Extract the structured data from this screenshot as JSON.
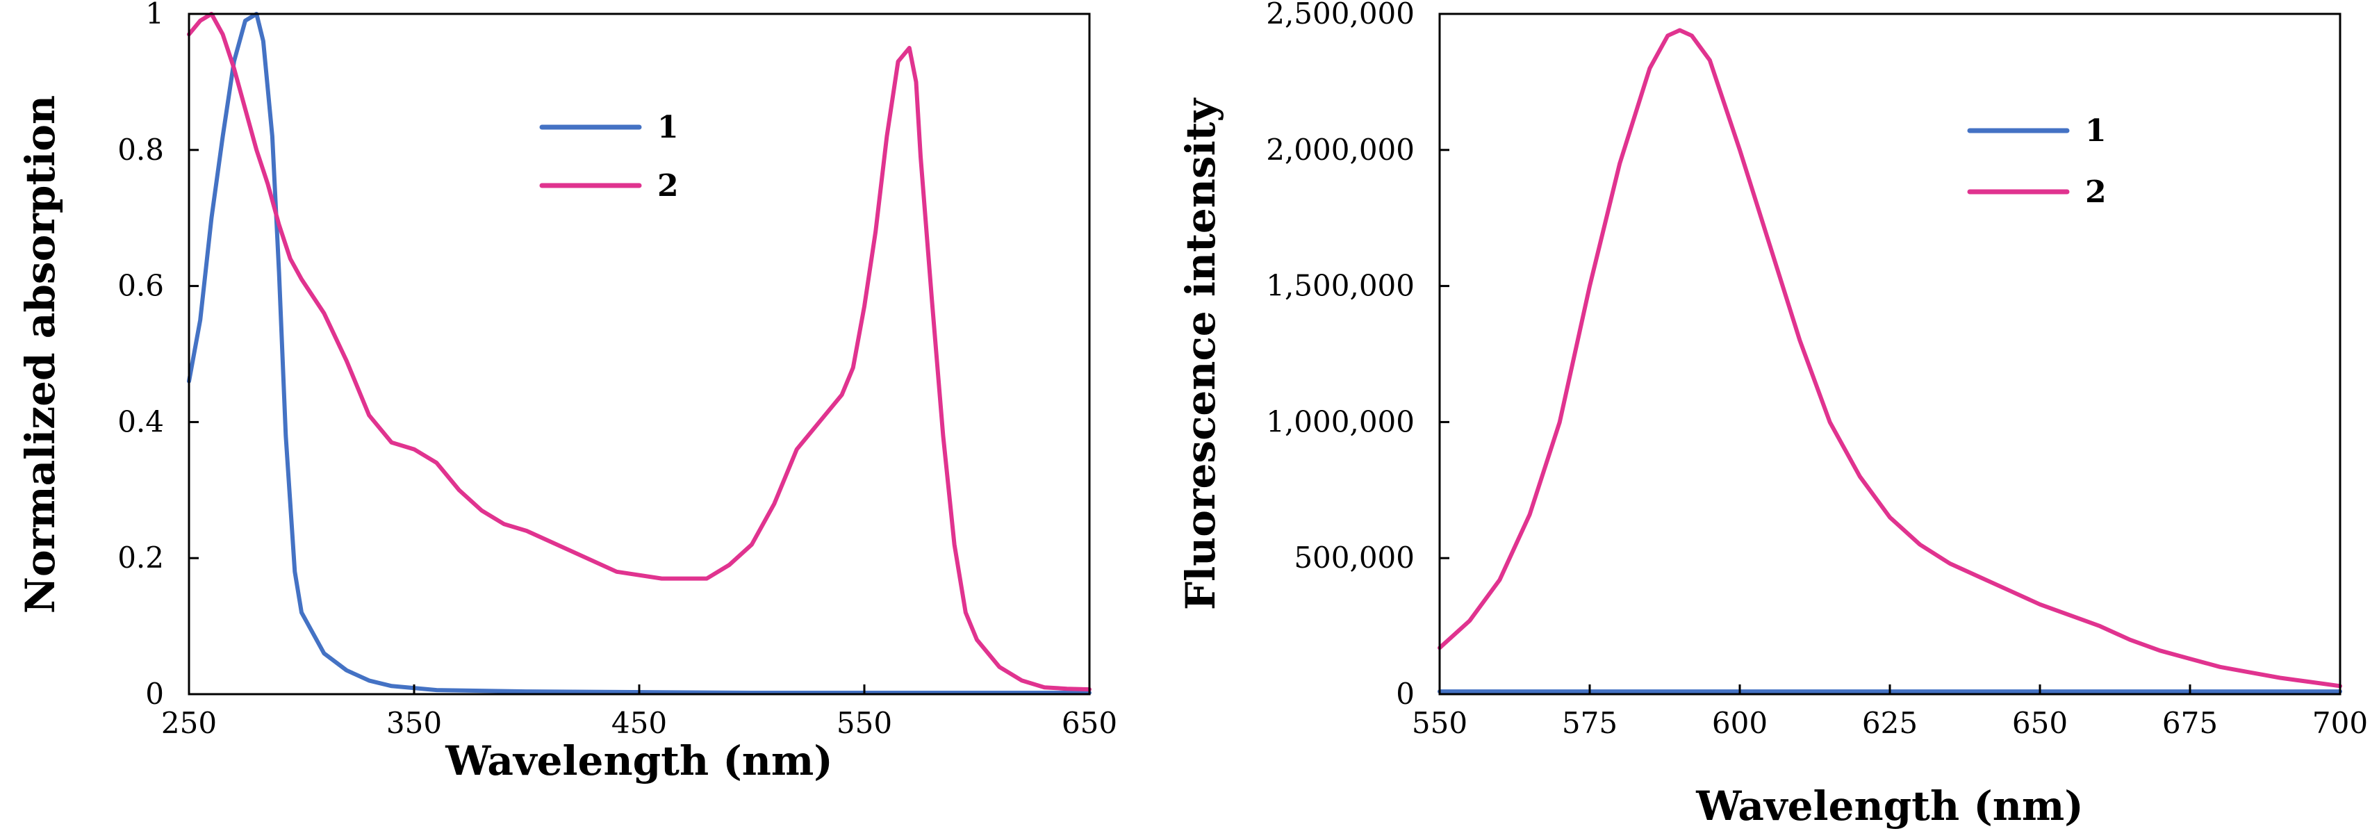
{
  "chart_data": [
    {
      "id": "absorption",
      "type": "line",
      "xlabel": "Wavelength (nm)",
      "ylabel": "Normalized absorption",
      "xlim": [
        250,
        650
      ],
      "ylim": [
        0,
        1
      ],
      "x_ticks": [
        250,
        350,
        450,
        550,
        650
      ],
      "x_tick_labels": [
        "250",
        "350",
        "450",
        "550",
        "650"
      ],
      "y_ticks": [
        0,
        0.2,
        0.4,
        0.6,
        0.8,
        1
      ],
      "y_tick_labels": [
        "0",
        "0.2",
        "0.4",
        "0.6",
        "0.8",
        "1"
      ],
      "grid": false,
      "legend_position": "top-center",
      "series": [
        {
          "name": "1",
          "color": "#4472C4",
          "x": [
            250,
            255,
            260,
            265,
            270,
            275,
            280,
            283,
            287,
            290,
            293,
            297,
            300,
            305,
            310,
            320,
            330,
            340,
            360,
            400,
            500,
            650
          ],
          "y": [
            0.46,
            0.55,
            0.7,
            0.82,
            0.93,
            0.99,
            1.0,
            0.96,
            0.82,
            0.62,
            0.38,
            0.18,
            0.12,
            0.09,
            0.06,
            0.035,
            0.02,
            0.012,
            0.006,
            0.004,
            0.002,
            0.002
          ]
        },
        {
          "name": "2",
          "color": "#E0338F",
          "x": [
            250,
            255,
            260,
            265,
            270,
            275,
            280,
            285,
            290,
            295,
            300,
            310,
            320,
            330,
            340,
            350,
            360,
            370,
            380,
            390,
            400,
            420,
            440,
            460,
            480,
            490,
            500,
            510,
            520,
            530,
            540,
            545,
            550,
            555,
            560,
            565,
            570,
            573,
            575,
            580,
            585,
            590,
            595,
            600,
            610,
            620,
            630,
            640,
            650
          ],
          "y": [
            0.97,
            0.99,
            1.0,
            0.97,
            0.92,
            0.86,
            0.8,
            0.75,
            0.69,
            0.64,
            0.61,
            0.56,
            0.49,
            0.41,
            0.37,
            0.36,
            0.34,
            0.3,
            0.27,
            0.25,
            0.24,
            0.21,
            0.18,
            0.17,
            0.17,
            0.19,
            0.22,
            0.28,
            0.36,
            0.4,
            0.44,
            0.48,
            0.57,
            0.68,
            0.82,
            0.93,
            0.95,
            0.9,
            0.79,
            0.58,
            0.38,
            0.22,
            0.12,
            0.08,
            0.04,
            0.02,
            0.01,
            0.008,
            0.007
          ]
        }
      ]
    },
    {
      "id": "fluorescence",
      "type": "line",
      "xlabel": "Wavelength (nm)",
      "ylabel": "Fluorescence intensity",
      "xlim": [
        550,
        700
      ],
      "ylim": [
        0,
        2500000
      ],
      "x_ticks": [
        550,
        575,
        600,
        625,
        650,
        675,
        700
      ],
      "x_tick_labels": [
        "550",
        "575",
        "600",
        "625",
        "650",
        "675",
        "700"
      ],
      "y_ticks": [
        0,
        500000,
        1000000,
        1500000,
        2000000,
        2500000
      ],
      "y_tick_labels": [
        "0",
        "500,000",
        "1,000,000",
        "1,500,000",
        "2,000,000",
        "2,500,000"
      ],
      "grid": false,
      "legend_position": "top-right",
      "series": [
        {
          "name": "1",
          "color": "#4472C4",
          "x": [
            550,
            700
          ],
          "y": [
            10000,
            10000
          ]
        },
        {
          "name": "2",
          "color": "#E0338F",
          "x": [
            550,
            555,
            560,
            565,
            570,
            575,
            580,
            585,
            588,
            590,
            592,
            595,
            600,
            605,
            610,
            615,
            620,
            625,
            630,
            635,
            640,
            645,
            650,
            655,
            660,
            665,
            670,
            675,
            680,
            685,
            690,
            695,
            700
          ],
          "y": [
            170000,
            270000,
            420000,
            660000,
            1000000,
            1500000,
            1950000,
            2300000,
            2420000,
            2440000,
            2420000,
            2330000,
            2000000,
            1650000,
            1300000,
            1000000,
            800000,
            650000,
            550000,
            480000,
            430000,
            380000,
            330000,
            290000,
            250000,
            200000,
            160000,
            130000,
            100000,
            80000,
            60000,
            45000,
            30000
          ]
        }
      ]
    }
  ]
}
